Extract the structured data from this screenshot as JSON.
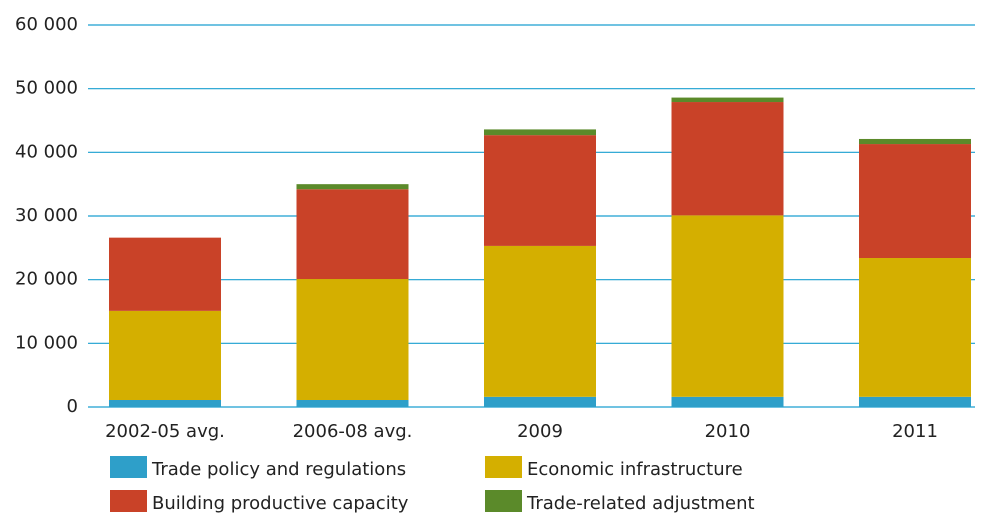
{
  "chart_data": {
    "type": "stacked_bar",
    "categories": [
      "2002-05 avg.",
      "2006-08 avg.",
      "2009",
      "2010",
      "2011"
    ],
    "series": [
      {
        "name": "Trade policy and regulations",
        "color": "#2e9fc9",
        "values": [
          1100,
          1100,
          1600,
          1600,
          1600
        ]
      },
      {
        "name": "Economic infrastructure",
        "color": "#d4af00",
        "values": [
          14000,
          19000,
          23700,
          28500,
          21800
        ]
      },
      {
        "name": "Building productive capacity",
        "color": "#c94228",
        "values": [
          11500,
          14100,
          17400,
          17800,
          17900
        ]
      },
      {
        "name": "Trade-related adjustment",
        "color": "#5b8a2a",
        "values": [
          0,
          800,
          900,
          700,
          800
        ]
      }
    ],
    "ylim": [
      0,
      60000
    ],
    "yticks": [
      0,
      {
        "value": 10000,
        "label": "10 000"
      },
      {
        "value": 20000,
        "label": "20 000"
      },
      {
        "value": 30000,
        "label": "30 000"
      },
      {
        "value": 40000,
        "label": "40 000"
      },
      {
        "value": 50000,
        "label": "50 000"
      },
      {
        "value": 60000,
        "label": "60 000"
      }
    ],
    "grid": true
  }
}
